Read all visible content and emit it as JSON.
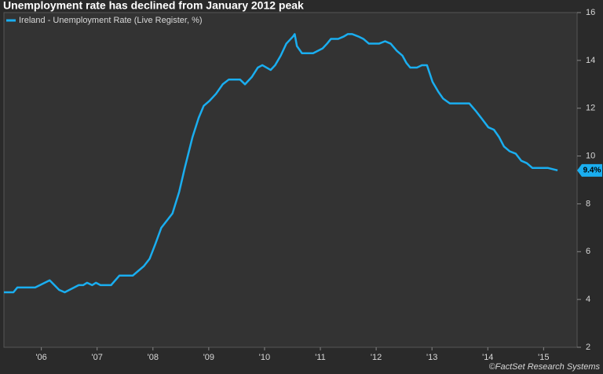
{
  "chart_data": {
    "type": "line",
    "title": "Unemployment rate has declined from January 2012 peak",
    "source": "©FactSet Research Systems",
    "legend": "top-left",
    "xlim": [
      2005.83,
      2016.1
    ],
    "xticks": [
      {
        "value": 2006.5,
        "label": "'06"
      },
      {
        "value": 2007.5,
        "label": "'07"
      },
      {
        "value": 2008.5,
        "label": "'08"
      },
      {
        "value": 2009.5,
        "label": "'09"
      },
      {
        "value": 2010.5,
        "label": "'10"
      },
      {
        "value": 2011.5,
        "label": "'11"
      },
      {
        "value": 2012.5,
        "label": "'12"
      },
      {
        "value": 2013.5,
        "label": "'13"
      },
      {
        "value": 2014.5,
        "label": "'14"
      },
      {
        "value": 2015.5,
        "label": "'15"
      }
    ],
    "ylim": [
      2,
      16
    ],
    "yticks": [
      2,
      4,
      6,
      8,
      10,
      12,
      14,
      16
    ],
    "x": [
      2005.83,
      2006.0,
      2006.07,
      2006.39,
      2006.65,
      2006.82,
      2006.92,
      2007.17,
      2007.25,
      2007.32,
      2007.41,
      2007.48,
      2007.56,
      2007.75,
      2007.9,
      2008.14,
      2008.24,
      2008.34,
      2008.44,
      2008.54,
      2008.65,
      2008.85,
      2008.97,
      2009.07,
      2009.21,
      2009.32,
      2009.41,
      2009.51,
      2009.63,
      2009.75,
      2009.86,
      2010.06,
      2010.15,
      2010.27,
      2010.38,
      2010.46,
      2010.61,
      2010.69,
      2010.79,
      2010.89,
      2011.01,
      2011.04,
      2011.08,
      2011.17,
      2011.37,
      2011.54,
      2011.62,
      2011.69,
      2011.82,
      2011.92,
      2011.99,
      2012.07,
      2012.18,
      2012.27,
      2012.37,
      2012.55,
      2012.66,
      2012.76,
      2012.87,
      2012.97,
      2013.04,
      2013.11,
      2013.23,
      2013.32,
      2013.41,
      2013.51,
      2013.61,
      2013.7,
      2013.82,
      2014.17,
      2014.28,
      2014.38,
      2014.51,
      2014.61,
      2014.7,
      2014.79,
      2014.89,
      2015.0,
      2015.1,
      2015.2,
      2015.3,
      2015.48,
      2015.58,
      2015.75
    ],
    "series": [
      {
        "name": "Ireland - Unemployment Rate (Live Register, %)",
        "color": "#1aaef0",
        "values": [
          4.3,
          4.3,
          4.5,
          4.5,
          4.8,
          4.4,
          4.3,
          4.6,
          4.6,
          4.7,
          4.6,
          4.7,
          4.6,
          4.6,
          5.0,
          5.0,
          5.2,
          5.4,
          5.7,
          6.3,
          7.0,
          7.6,
          8.5,
          9.5,
          10.8,
          11.6,
          12.1,
          12.3,
          12.6,
          13.0,
          13.2,
          13.2,
          13.0,
          13.3,
          13.7,
          13.8,
          13.6,
          13.8,
          14.2,
          14.7,
          15.0,
          15.1,
          14.6,
          14.3,
          14.3,
          14.5,
          14.7,
          14.9,
          14.9,
          15.0,
          15.1,
          15.1,
          15.0,
          14.9,
          14.7,
          14.7,
          14.8,
          14.7,
          14.4,
          14.2,
          13.9,
          13.7,
          13.7,
          13.8,
          13.8,
          13.1,
          12.7,
          12.4,
          12.2,
          12.2,
          11.9,
          11.6,
          11.2,
          11.1,
          10.8,
          10.4,
          10.2,
          10.1,
          9.8,
          9.7,
          9.5,
          9.5,
          9.5,
          9.4
        ],
        "value_labels": [
          null,
          null,
          null,
          null,
          null,
          null,
          null,
          null,
          null,
          null,
          null,
          null,
          null,
          null,
          null,
          null,
          null,
          null,
          null,
          null,
          null,
          null,
          null,
          null,
          null,
          null,
          null,
          null,
          null,
          null,
          null,
          null,
          null,
          null,
          null,
          null,
          null,
          null,
          null,
          null,
          null,
          null,
          null,
          null,
          null,
          null,
          null,
          null,
          null,
          null,
          null,
          null,
          null,
          null,
          null,
          null,
          null,
          null,
          null,
          null,
          null,
          null,
          null,
          null,
          null,
          null,
          null,
          null,
          null,
          null,
          null,
          null,
          null,
          null,
          null,
          null,
          null,
          null,
          null,
          null,
          null,
          null,
          null,
          "9.4%"
        ]
      }
    ]
  }
}
